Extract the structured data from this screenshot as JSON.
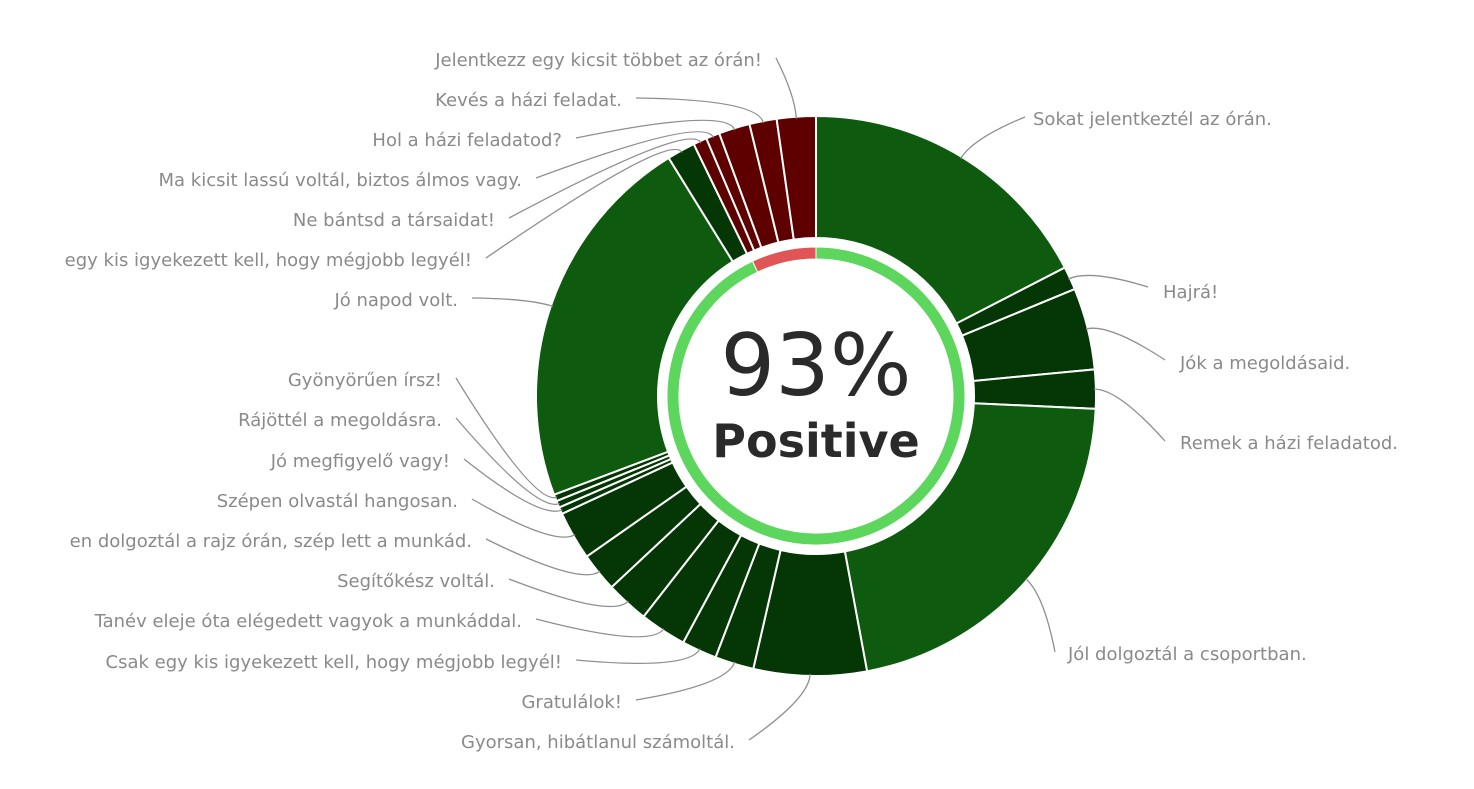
{
  "center": {
    "percent_text": "93%",
    "caption": "Positive"
  },
  "colors": {
    "positive": "#0e5a0e",
    "positive_dark": "#053605",
    "negative": "#5e0000",
    "inner_positive": "#5cd65c",
    "inner_negative": "#e05555"
  },
  "chart_data": {
    "type": "pie",
    "variant": "nested-donut",
    "inner_ring": [
      {
        "label": "Positive",
        "value": 93
      },
      {
        "label": "Negative",
        "value": 7
      }
    ],
    "slices": [
      {
        "label": "Sokat jelentkeztél az órán.",
        "value": 15.5,
        "sentiment": "positive"
      },
      {
        "label": "Hajrá!",
        "value": 1.2,
        "sentiment": "positive"
      },
      {
        "label": "Jók a megoldásaid.",
        "value": 4.2,
        "sentiment": "positive"
      },
      {
        "label": "Remek a házi feladatod.",
        "value": 2.0,
        "sentiment": "positive"
      },
      {
        "label": "Jól dolgoztál a csoportban.",
        "value": 19.0,
        "sentiment": "positive"
      },
      {
        "label": "Gyorsan, hibátlanul számoltál.",
        "value": 5.8,
        "sentiment": "positive"
      },
      {
        "label": "Gratulálok!",
        "value": 2.0,
        "sentiment": "positive"
      },
      {
        "label": "Csak egy kis igyekezett kell, hogy mégjobb legyél!",
        "value": 1.8,
        "sentiment": "positive"
      },
      {
        "label": "Tanév eleje óta elégedett vagyok a munkáddal.",
        "value": 2.4,
        "sentiment": "positive"
      },
      {
        "label": "Segítőkész voltál.",
        "value": 2.2,
        "sentiment": "positive"
      },
      {
        "label": "en dolgoztál a rajz órán, szép lett a munkád.",
        "value": 2.0,
        "sentiment": "positive"
      },
      {
        "label": "Szépen olvastál hangosan.",
        "value": 2.5,
        "sentiment": "positive"
      },
      {
        "label": "Jó megfigyelő vagy!",
        "value": 0.35,
        "sentiment": "positive"
      },
      {
        "label": "Rájöttél a megoldásra.",
        "value": 0.35,
        "sentiment": "positive"
      },
      {
        "label": "Gyönyörűen írsz!",
        "value": 0.35,
        "sentiment": "positive"
      },
      {
        "label": "Jó napod volt.",
        "value": 19.5,
        "sentiment": "positive"
      },
      {
        "label": "egy kis igyekezett kell, hogy mégjobb legyél!",
        "value": 1.45,
        "sentiment": "positive"
      },
      {
        "label": "Ne bántsd a társaidat!",
        "value": 0.7,
        "sentiment": "negative"
      },
      {
        "label": "Ma kicsit lassú voltál, biztos álmos vagy.",
        "value": 0.7,
        "sentiment": "negative"
      },
      {
        "label": "Hol a házi feladatod?",
        "value": 1.6,
        "sentiment": "negative"
      },
      {
        "label": "Kevés a házi feladat.",
        "value": 1.4,
        "sentiment": "negative"
      },
      {
        "label": "Jelentkezz egy kicsit többet az órán!",
        "value": 2.0,
        "sentiment": "negative"
      }
    ]
  }
}
